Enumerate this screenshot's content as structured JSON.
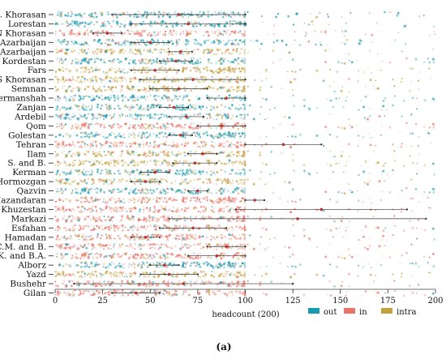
{
  "chart_data": {
    "type": "scatter",
    "xlabel": "headcount (200)",
    "xlim": [
      0,
      200
    ],
    "xticks": [
      "0",
      "25",
      "50",
      "75",
      "100",
      "125",
      "150",
      "175",
      "200"
    ],
    "categories": [
      "R. Khorasan",
      "Lorestan",
      "N Khorasan",
      "E Azarbaijan",
      "W Azarbaijan",
      "Kordestan",
      "Fars",
      "S Khorasan",
      "Semnan",
      "Kermanshah",
      "Zanjan",
      "Ardebil",
      "Qom",
      "Golestan",
      "Tehran",
      "Ilam",
      "S. and B.",
      "Kerman",
      "Hormozgan",
      "Qazvin",
      "Mazandaran",
      "Khuzestan",
      "Markazi",
      "Esfahan",
      "Hamadan",
      "C.M. and B.",
      "K. and B.A.",
      "Alborz",
      "Yazd",
      "Bushehr",
      "Gilan"
    ],
    "row_types": [
      "out",
      "out",
      "in",
      "out",
      "intra",
      "out",
      "intra",
      "intra",
      "intra",
      "out",
      "out",
      "out",
      "in",
      "out",
      "in",
      "intra",
      "intra",
      "out",
      "intra",
      "out",
      "in",
      "in",
      "in",
      "in",
      "in",
      "in",
      "in",
      "out",
      "intra",
      "in",
      "in"
    ],
    "range_bars": [
      {
        "row": "R. Khorasan",
        "low": 30,
        "high": 100
      },
      {
        "row": "Lorestan",
        "low": 40,
        "high": 100
      },
      {
        "row": "N Khorasan",
        "low": 20,
        "high": 35
      },
      {
        "row": "E Azarbaijan",
        "low": 40,
        "high": 60
      },
      {
        "row": "W Azarbaijan",
        "low": 60,
        "high": 72
      },
      {
        "row": "Kordestan",
        "low": 55,
        "high": 72
      },
      {
        "row": "Fars",
        "low": 40,
        "high": 65
      },
      {
        "row": "S Khorasan",
        "low": 45,
        "high": 100
      },
      {
        "row": "Semnan",
        "low": 50,
        "high": 80
      },
      {
        "row": "Kermanshah",
        "low": 80,
        "high": 100
      },
      {
        "row": "Zanjan",
        "low": 55,
        "high": 70
      },
      {
        "row": "Ardebil",
        "low": 60,
        "high": 78
      },
      {
        "row": "Qom",
        "low": 75,
        "high": 100
      },
      {
        "row": "Golestan",
        "low": 60,
        "high": 72
      },
      {
        "row": "Tehran",
        "low": 100,
        "high": 140
      },
      {
        "row": "Ilam",
        "low": 70,
        "high": 85
      },
      {
        "row": "S. and B.",
        "low": 62,
        "high": 85
      },
      {
        "row": "Kerman",
        "low": 45,
        "high": 60
      },
      {
        "row": "Hormozgan",
        "low": 40,
        "high": 55
      },
      {
        "row": "Qazvin",
        "low": 70,
        "high": 80
      },
      {
        "row": "Mazandaran",
        "low": 100,
        "high": 110
      },
      {
        "row": "Khuzestan",
        "low": 95,
        "high": 185
      },
      {
        "row": "Markazi",
        "low": 60,
        "high": 195
      },
      {
        "row": "Esfahan",
        "low": 55,
        "high": 90
      },
      {
        "row": "Hamadan",
        "low": 40,
        "high": 55
      },
      {
        "row": "C.M. and B.",
        "low": 80,
        "high": 100
      },
      {
        "row": "K. and B.A.",
        "low": 70,
        "high": 100
      },
      {
        "row": "Alborz",
        "low": 50,
        "high": 65
      },
      {
        "row": "Yazd",
        "low": 45,
        "high": 75
      },
      {
        "row": "Bushehr",
        "low": 10,
        "high": 125
      },
      {
        "row": "Gilan",
        "low": 30,
        "high": 55
      }
    ],
    "legend": {
      "placement": "bottom-right",
      "items": [
        {
          "name": "out",
          "color": "#1a9aae"
        },
        {
          "name": "in",
          "color": "#e8736a"
        },
        {
          "name": "intra",
          "color": "#c3a13c"
        }
      ]
    },
    "grid": false
  },
  "caption": "(a)"
}
